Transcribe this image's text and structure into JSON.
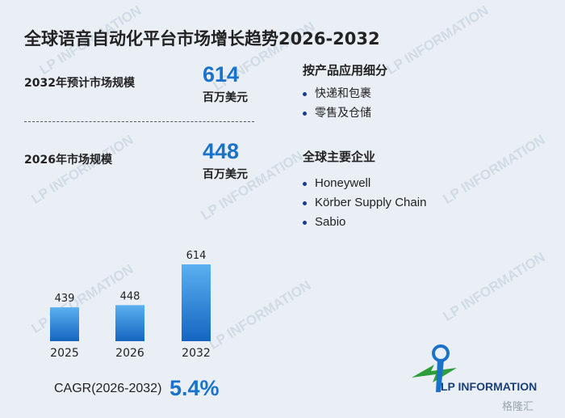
{
  "title": "全球语音自动化平台市场增长趋势2026-2032",
  "metrics": [
    {
      "label": "2032年预计市场规模",
      "value": "614",
      "unit": "百万美元"
    },
    {
      "label": "2026年市场规模",
      "value": "448",
      "unit": "百万美元"
    }
  ],
  "segments": {
    "title": "按产品应用细分",
    "items": [
      "快递和包裹",
      "零售及仓储"
    ]
  },
  "companies": {
    "title": "全球主要企业",
    "items": [
      "Honeywell",
      "Körber Supply Chain",
      "Sabio"
    ]
  },
  "chart_data": {
    "type": "bar",
    "categories": [
      "2025",
      "2026",
      "2032"
    ],
    "values": [
      439,
      448,
      614
    ],
    "title": "",
    "xlabel": "",
    "ylabel": "",
    "ylim": [
      0,
      700
    ],
    "grid": false,
    "legend": "none",
    "colors": {
      "bar_top": "#5ab0f0",
      "bar_bottom": "#1565c0"
    }
  },
  "cagr": {
    "label": "CAGR(2026-2032)",
    "value": "5.4%"
  },
  "brand": {
    "name": "LP INFORMATION",
    "watermark": "LP INFORMATION",
    "corner_mark": "格隆汇"
  },
  "colors": {
    "accent": "#1a73c8",
    "background": "#e9eff5",
    "text": "#222222"
  }
}
